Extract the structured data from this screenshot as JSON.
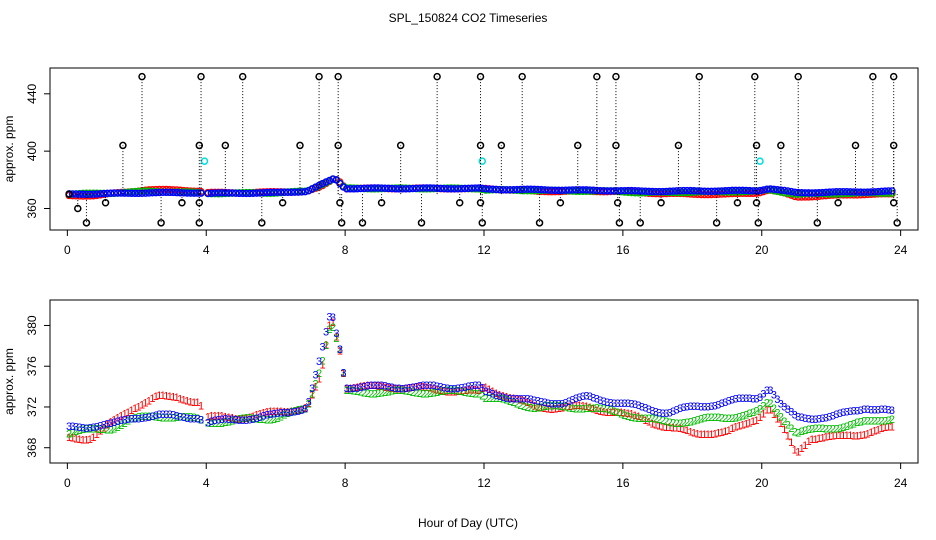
{
  "chart_data": [
    {
      "type": "scatter",
      "title": "SPL_150824  CO2 Timeseries",
      "xlabel": "",
      "ylabel": "approx. ppm",
      "xlim": [
        -0.5,
        24.5
      ],
      "ylim": [
        345,
        458
      ],
      "xticks": [
        0,
        4,
        8,
        12,
        16,
        20,
        24
      ],
      "yticks": [
        360,
        400,
        440
      ],
      "series": [
        {
          "name": "red",
          "color": "#ff0000",
          "marker": "o",
          "baseline": [
            [
              0.05,
              369
            ],
            [
              0.8,
              369
            ],
            [
              1.5,
              371
            ],
            [
              2.3,
              373
            ],
            [
              3.2,
              373
            ],
            [
              3.8,
              372
            ],
            [
              4.0,
              371
            ],
            [
              5.0,
              371
            ],
            [
              6.0,
              371.5
            ],
            [
              6.9,
              372
            ],
            [
              7.3,
              375
            ],
            [
              7.7,
              381
            ],
            [
              7.9,
              378
            ],
            [
              8.0,
              374
            ],
            [
              9.5,
              374
            ],
            [
              11.0,
              374
            ],
            [
              11.9,
              373.5
            ],
            [
              12.0,
              374
            ],
            [
              13.5,
              372
            ],
            [
              15.0,
              372
            ],
            [
              15.8,
              372
            ],
            [
              16.5,
              371
            ],
            [
              18.0,
              370
            ],
            [
              19.0,
              370
            ],
            [
              19.9,
              371
            ],
            [
              20.2,
              373
            ],
            [
              20.6,
              371
            ],
            [
              21.0,
              368
            ],
            [
              22.0,
              369
            ],
            [
              23.0,
              370
            ],
            [
              23.8,
              370
            ]
          ]
        },
        {
          "name": "green",
          "color": "#00bb00",
          "marker": "o",
          "baseline": [
            [
              0.05,
              370
            ],
            [
              1.5,
              371
            ],
            [
              2.3,
              372
            ],
            [
              3.8,
              371
            ],
            [
              4.0,
              370.5
            ],
            [
              6.0,
              371
            ],
            [
              6.9,
              372
            ],
            [
              7.7,
              381
            ],
            [
              8.0,
              374
            ],
            [
              11.9,
              374
            ],
            [
              12.0,
              373
            ],
            [
              15.8,
              372
            ],
            [
              16.5,
              371
            ],
            [
              19.9,
              372
            ],
            [
              20.2,
              373
            ],
            [
              21.0,
              370
            ],
            [
              23.8,
              371
            ]
          ]
        },
        {
          "name": "blue",
          "color": "#0000ff",
          "marker": "o",
          "baseline": [
            [
              0.05,
              370
            ],
            [
              1.5,
              370.5
            ],
            [
              2.3,
              371
            ],
            [
              3.8,
              371
            ],
            [
              4.0,
              370.5
            ],
            [
              6.0,
              371
            ],
            [
              6.9,
              372
            ],
            [
              7.7,
              381
            ],
            [
              8.0,
              374
            ],
            [
              11.9,
              374
            ],
            [
              12.0,
              373.5
            ],
            [
              15.8,
              372.5
            ],
            [
              16.5,
              372
            ],
            [
              19.9,
              372.5
            ],
            [
              20.2,
              374
            ],
            [
              21.0,
              371
            ],
            [
              23.8,
              372
            ]
          ]
        },
        {
          "name": "cyan",
          "color": "#00dddd",
          "marker": "o",
          "points": [
            [
              3.95,
              393
            ],
            [
              11.95,
              393
            ],
            [
              19.95,
              393
            ]
          ]
        },
        {
          "name": "black",
          "color": "#000000",
          "marker": "o",
          "base": 370,
          "points": [
            [
              0.05,
              370
            ],
            [
              0.3,
              360
            ],
            [
              0.55,
              350
            ],
            [
              1.1,
              364
            ],
            [
              1.6,
              404
            ],
            [
              2.15,
              452
            ],
            [
              2.7,
              350
            ],
            [
              3.3,
              364
            ],
            [
              3.8,
              404
            ],
            [
              3.8,
              364
            ],
            [
              3.8,
              350
            ],
            [
              3.85,
              452
            ],
            [
              4.55,
              404
            ],
            [
              5.05,
              452
            ],
            [
              5.6,
              350
            ],
            [
              6.2,
              364
            ],
            [
              6.7,
              404
            ],
            [
              7.25,
              452
            ],
            [
              7.8,
              452
            ],
            [
              7.8,
              404
            ],
            [
              7.85,
              364
            ],
            [
              7.9,
              350
            ],
            [
              8.5,
              350
            ],
            [
              9.05,
              364
            ],
            [
              9.6,
              404
            ],
            [
              10.2,
              350
            ],
            [
              10.65,
              452
            ],
            [
              11.3,
              364
            ],
            [
              11.9,
              452
            ],
            [
              11.9,
              404
            ],
            [
              11.9,
              364
            ],
            [
              11.95,
              350
            ],
            [
              12.5,
              404
            ],
            [
              13.1,
              452
            ],
            [
              13.6,
              350
            ],
            [
              14.2,
              364
            ],
            [
              14.7,
              404
            ],
            [
              15.25,
              452
            ],
            [
              15.8,
              452
            ],
            [
              15.8,
              404
            ],
            [
              15.85,
              364
            ],
            [
              15.9,
              350
            ],
            [
              16.5,
              350
            ],
            [
              17.1,
              364
            ],
            [
              17.6,
              404
            ],
            [
              18.2,
              452
            ],
            [
              18.7,
              350
            ],
            [
              19.3,
              364
            ],
            [
              19.8,
              452
            ],
            [
              19.85,
              404
            ],
            [
              19.85,
              364
            ],
            [
              19.9,
              350
            ],
            [
              20.55,
              404
            ],
            [
              21.05,
              452
            ],
            [
              21.6,
              350
            ],
            [
              22.2,
              364
            ],
            [
              22.7,
              404
            ],
            [
              23.2,
              452
            ],
            [
              23.8,
              452
            ],
            [
              23.8,
              404
            ],
            [
              23.8,
              364
            ],
            [
              23.9,
              350
            ]
          ]
        }
      ]
    },
    {
      "type": "scatter",
      "title": "",
      "xlabel": "Hour of Day (UTC)",
      "ylabel": "approx. ppm",
      "xlim": [
        -0.5,
        24.5
      ],
      "ylim": [
        366.5,
        382.5
      ],
      "xticks": [
        0,
        4,
        8,
        12,
        16,
        20,
        24
      ],
      "yticks": [
        368,
        372,
        376,
        380
      ],
      "series": [
        {
          "name": "1",
          "color": "#ff0000",
          "marker": "1",
          "baseline": [
            [
              0.05,
              369
            ],
            [
              0.7,
              369
            ],
            [
              1.3,
              370.5
            ],
            [
              1.9,
              372
            ],
            [
              2.6,
              373
            ],
            [
              3.2,
              373
            ],
            [
              3.8,
              372.5
            ],
            [
              4.0,
              371
            ],
            [
              5.0,
              371
            ],
            [
              6.0,
              371.5
            ],
            [
              6.9,
              372
            ],
            [
              7.3,
              375
            ],
            [
              7.6,
              381
            ],
            [
              7.9,
              377
            ],
            [
              8.0,
              374
            ],
            [
              9.5,
              374
            ],
            [
              11.9,
              373.5
            ],
            [
              12.0,
              374
            ],
            [
              13.5,
              372
            ],
            [
              15.0,
              372
            ],
            [
              15.8,
              371.5
            ],
            [
              16.5,
              371
            ],
            [
              17.3,
              370
            ],
            [
              18.0,
              369.5
            ],
            [
              19.0,
              369.5
            ],
            [
              19.9,
              371
            ],
            [
              20.2,
              372
            ],
            [
              20.6,
              370
            ],
            [
              21.0,
              367.5
            ],
            [
              21.4,
              369
            ],
            [
              22.0,
              369
            ],
            [
              23.0,
              369.5
            ],
            [
              23.8,
              370
            ]
          ]
        },
        {
          "name": "2",
          "color": "#00bb00",
          "marker": "2",
          "baseline": [
            [
              0.05,
              369.5
            ],
            [
              1.3,
              370
            ],
            [
              1.9,
              370.8
            ],
            [
              2.6,
              371.2
            ],
            [
              3.8,
              370.8
            ],
            [
              4.0,
              370.5
            ],
            [
              6.0,
              371
            ],
            [
              6.9,
              371.8
            ],
            [
              7.3,
              376
            ],
            [
              7.6,
              380.5
            ],
            [
              7.9,
              377
            ],
            [
              8.0,
              373.5
            ],
            [
              11.9,
              373.5
            ],
            [
              12.0,
              373
            ],
            [
              13.5,
              372
            ],
            [
              15.0,
              372
            ],
            [
              15.8,
              371.5
            ],
            [
              16.5,
              371
            ],
            [
              17.3,
              370.5
            ],
            [
              19.0,
              371
            ],
            [
              19.9,
              371.5
            ],
            [
              20.2,
              372.5
            ],
            [
              20.6,
              371
            ],
            [
              21.0,
              369.5
            ],
            [
              22.0,
              370
            ],
            [
              23.0,
              370.5
            ],
            [
              23.8,
              371
            ]
          ]
        },
        {
          "name": "3",
          "color": "#0000ff",
          "marker": "3",
          "baseline": [
            [
              0.05,
              370
            ],
            [
              1.3,
              370.3
            ],
            [
              1.9,
              371
            ],
            [
              2.6,
              371.2
            ],
            [
              3.8,
              371
            ],
            [
              4.0,
              370.5
            ],
            [
              6.0,
              371.2
            ],
            [
              6.9,
              372
            ],
            [
              7.3,
              377
            ],
            [
              7.6,
              381.5
            ],
            [
              7.9,
              377
            ],
            [
              8.0,
              374
            ],
            [
              11.9,
              374
            ],
            [
              12.0,
              373.5
            ],
            [
              13.5,
              372.5
            ],
            [
              14.3,
              372.5
            ],
            [
              15.0,
              373
            ],
            [
              15.8,
              372.5
            ],
            [
              16.5,
              372
            ],
            [
              17.3,
              371.5
            ],
            [
              18.0,
              372
            ],
            [
              19.0,
              372.5
            ],
            [
              19.9,
              373
            ],
            [
              20.2,
              374
            ],
            [
              20.6,
              372
            ],
            [
              21.0,
              371
            ],
            [
              22.0,
              371
            ],
            [
              22.5,
              371.5
            ],
            [
              23.0,
              372
            ],
            [
              23.8,
              371.5
            ]
          ]
        }
      ]
    }
  ]
}
